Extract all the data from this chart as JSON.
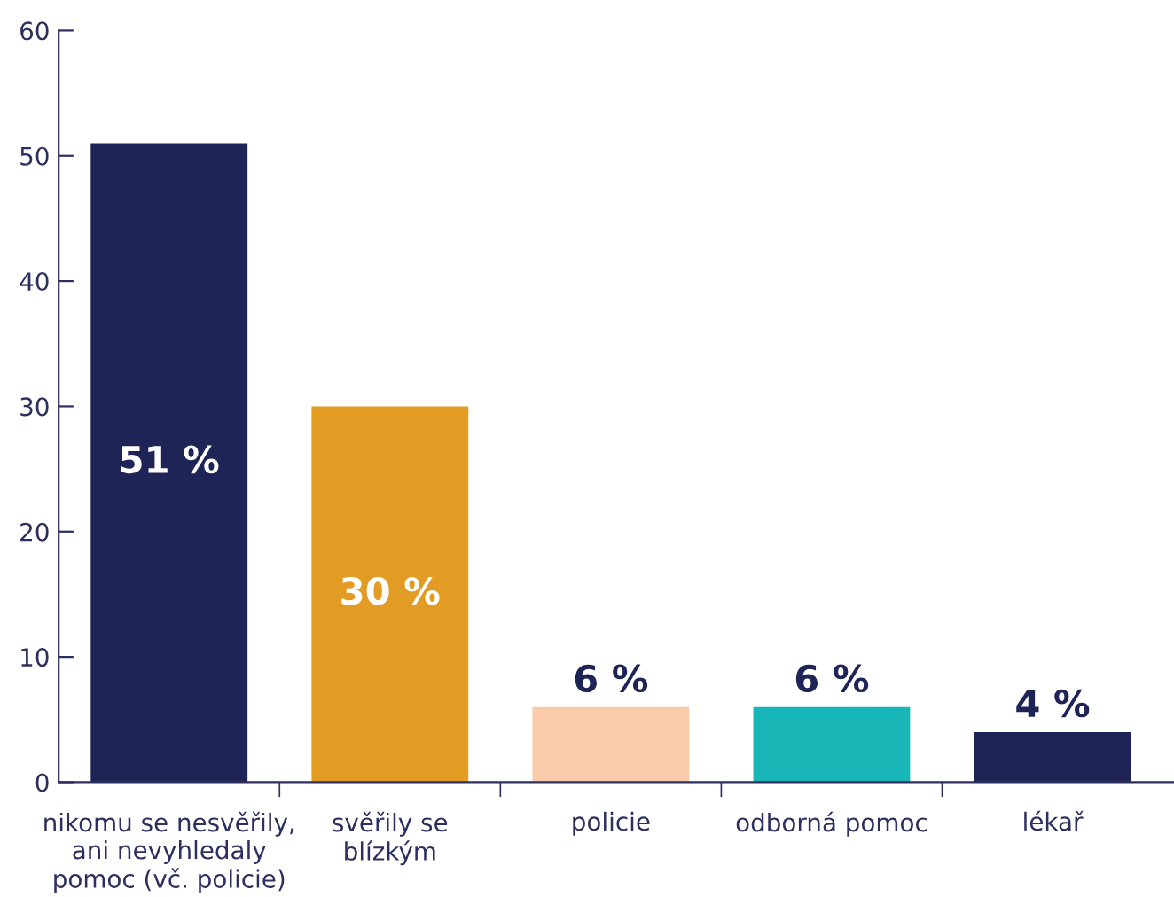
{
  "chart_data": {
    "type": "bar",
    "categories": [
      "nikomu se nesvěřily,\nani nevyhledaly\npomoc (vč. policie)",
      "svěřily se\nblízkým",
      "policie",
      "odborná pomoc",
      "lékař"
    ],
    "values": [
      51,
      30,
      6,
      6,
      4
    ],
    "colors": [
      "#1e2556",
      "#e39c23",
      "#f9cbaa",
      "#19b6b8",
      "#1e2556"
    ],
    "value_labels": [
      "51 %",
      "30 %",
      "6 %",
      "6 %",
      "4 %"
    ],
    "ylim": [
      0,
      60
    ],
    "yticks": [
      0,
      10,
      20,
      30,
      40,
      50,
      60
    ],
    "grid": false,
    "legend": false
  }
}
